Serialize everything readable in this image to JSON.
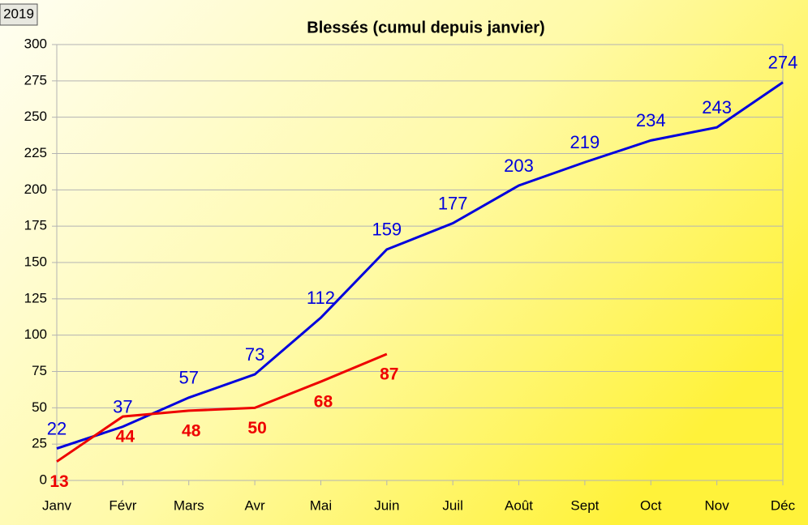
{
  "chart_data": {
    "type": "line",
    "title": "Blessés (cumul depuis janvier)",
    "categories": [
      "Janv",
      "Févr",
      "Mars",
      "Avr",
      "Mai",
      "Juin",
      "Juil",
      "Août",
      "Sept",
      "Oct",
      "Nov",
      "Déc"
    ],
    "series": [
      {
        "name": "2019",
        "color": "#0000dd",
        "values": [
          22,
          37,
          57,
          73,
          112,
          159,
          177,
          203,
          219,
          234,
          243,
          274
        ]
      },
      {
        "color": "#ee0000",
        "values": [
          13,
          44,
          48,
          50,
          68,
          87,
          null,
          null,
          null,
          null,
          null,
          null
        ]
      }
    ],
    "ylim": [
      0,
      300
    ],
    "yticks": [
      0,
      25,
      50,
      75,
      100,
      125,
      150,
      175,
      200,
      225,
      250,
      275,
      300
    ],
    "grid": true
  }
}
